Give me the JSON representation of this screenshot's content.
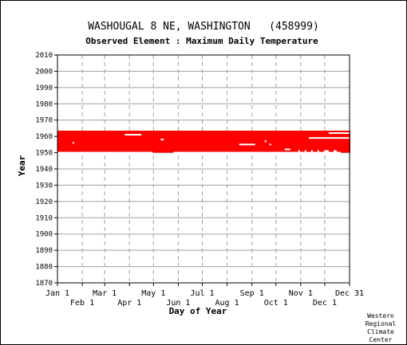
{
  "chart_data": {
    "type": "bar",
    "title": "WASHOUGAL 8 NE, WASHINGTON   (458999)",
    "subtitle": "Observed Element : Maximum Daily Temperature",
    "xlabel": "Day of Year",
    "ylabel": "Year",
    "ylim": [
      1870,
      2010
    ],
    "y_ticks": [
      2010,
      2000,
      1990,
      1980,
      1970,
      1960,
      1950,
      1940,
      1930,
      1920,
      1910,
      1900,
      1890,
      1880,
      1870
    ],
    "x_ticks_top_row": [
      "Jan 1",
      "Mar 1",
      "May 1",
      "Jul 1",
      "Sep 1",
      "Nov 1",
      "Dec 31"
    ],
    "x_ticks_bottom_row": [
      "Feb 1",
      "Apr 1",
      "Jun 1",
      "Aug 1",
      "Oct 1",
      "Dec 1"
    ],
    "grid": true,
    "series_color": "#ff0000",
    "coverage": {
      "first_year": 1950,
      "last_year": 1963,
      "day_start": 1,
      "day_end": 366
    },
    "gaps": [
      {
        "year": 1962,
        "day_start": 340,
        "day_end": 366
      },
      {
        "year": 1961,
        "day_start": 85,
        "day_end": 106
      },
      {
        "year": 1959,
        "day_start": 315,
        "day_end": 366
      },
      {
        "year": 1958,
        "day_start": 130,
        "day_end": 134
      },
      {
        "year": 1957,
        "day_start": 260,
        "day_end": 262
      },
      {
        "year": 1956,
        "day_start": 20,
        "day_end": 22
      },
      {
        "year": 1955,
        "day_start": 228,
        "day_end": 248
      },
      {
        "year": 1955,
        "day_start": 266,
        "day_end": 268
      },
      {
        "year": 1952,
        "day_start": 285,
        "day_end": 292
      },
      {
        "year": 1951,
        "day_start": 302,
        "day_end": 304
      },
      {
        "year": 1951,
        "day_start": 310,
        "day_end": 312
      },
      {
        "year": 1951,
        "day_start": 318,
        "day_end": 320
      },
      {
        "year": 1951,
        "day_start": 326,
        "day_end": 328
      },
      {
        "year": 1951,
        "day_start": 334,
        "day_end": 340
      },
      {
        "year": 1951,
        "day_start": 346,
        "day_end": 350
      },
      {
        "year": 1950,
        "day_start": 1,
        "day_end": 120
      },
      {
        "year": 1950,
        "day_start": 146,
        "day_end": 355
      }
    ]
  },
  "credit_lines": [
    "Western",
    "Regional",
    "Climate",
    "Center"
  ]
}
